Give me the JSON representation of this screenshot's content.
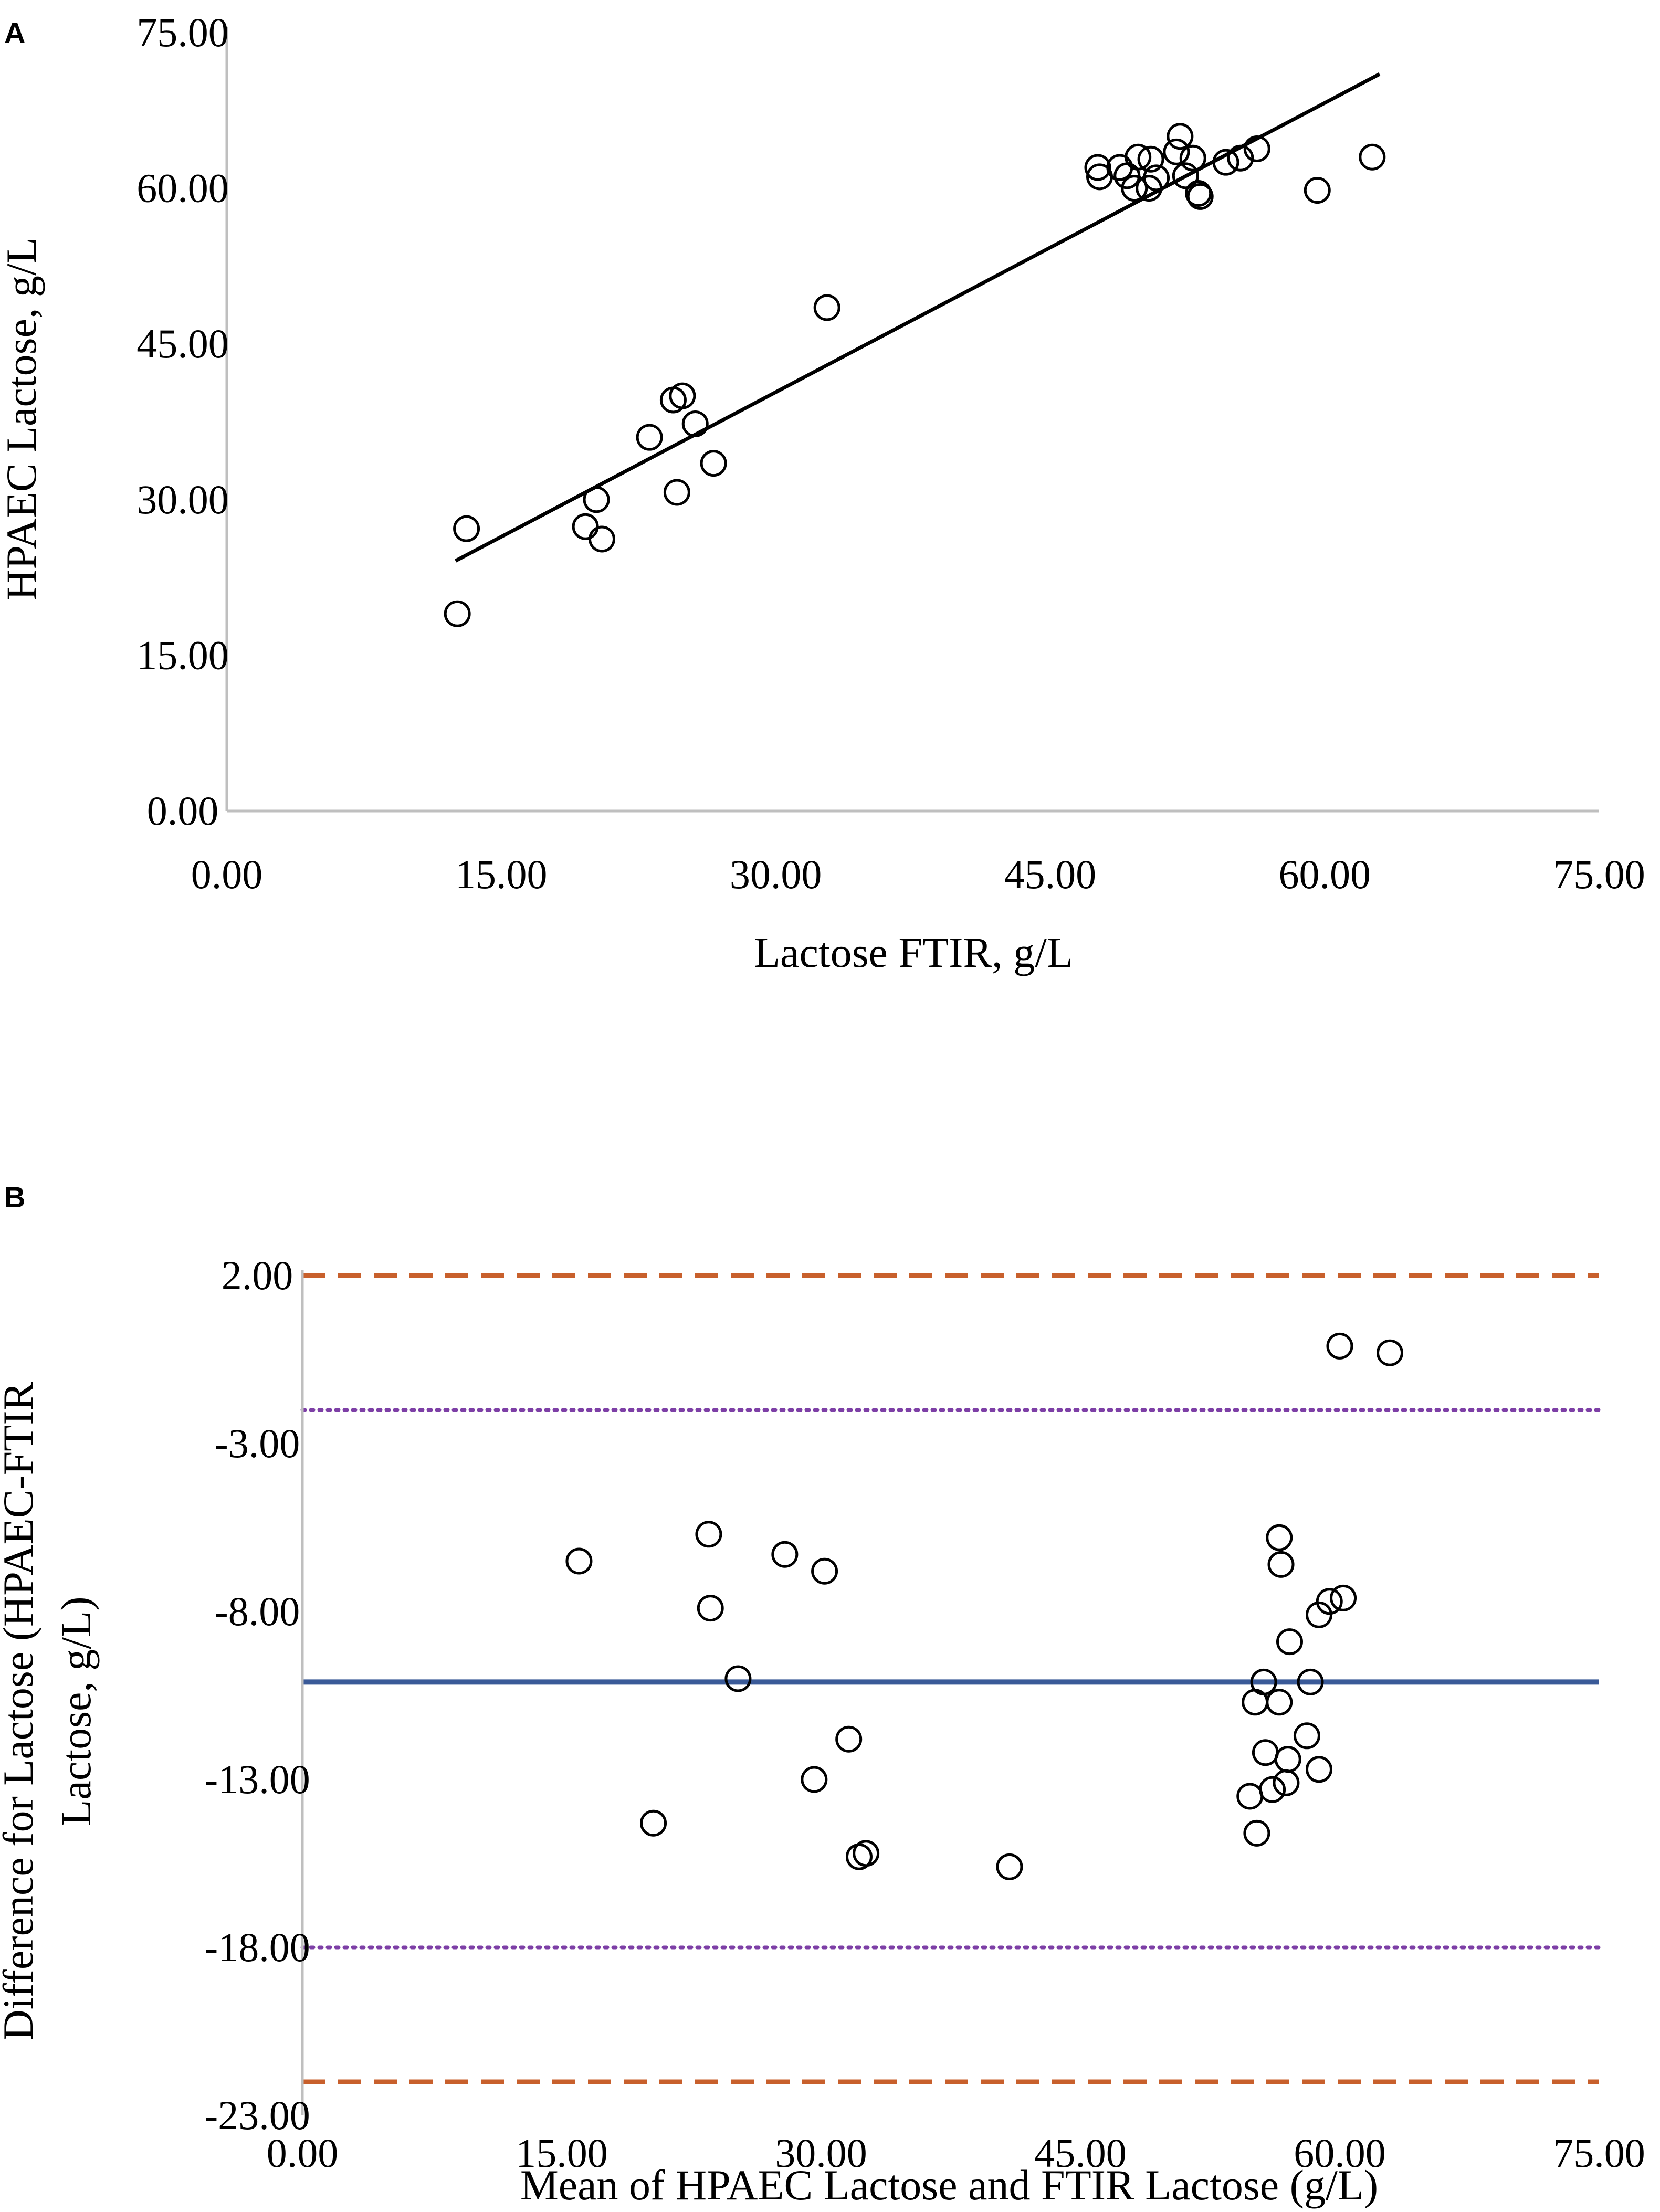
{
  "figure": {
    "panels": [
      "A",
      "B"
    ]
  },
  "chart_data": [
    {
      "panel": "A",
      "type": "scatter",
      "title": "",
      "xlabel": "Lactose FTIR, g/L",
      "ylabel": "HPAEC Lactose, g/L",
      "xlim": [
        0,
        75
      ],
      "ylim": [
        0,
        75
      ],
      "x_ticks": [
        "0.00",
        "15.00",
        "30.00",
        "45.00",
        "60.00",
        "75.00"
      ],
      "y_ticks": [
        "0.00",
        "15.00",
        "30.00",
        "45.00",
        "60.00",
        "75.00"
      ],
      "grid": false,
      "series": [
        {
          "name": "samples",
          "marker": "open-circle",
          "points": [
            [
              12.6,
              19.0
            ],
            [
              13.1,
              27.2
            ],
            [
              19.6,
              27.4
            ],
            [
              20.2,
              30.0
            ],
            [
              20.5,
              26.2
            ],
            [
              23.1,
              36.0
            ],
            [
              24.4,
              39.6
            ],
            [
              24.6,
              30.7
            ],
            [
              24.9,
              40.0
            ],
            [
              25.6,
              37.3
            ],
            [
              26.6,
              33.5
            ],
            [
              32.8,
              48.5
            ],
            [
              47.6,
              62.0
            ],
            [
              47.7,
              61.1
            ],
            [
              48.8,
              62.0
            ],
            [
              49.2,
              61.2
            ],
            [
              49.6,
              60.0
            ],
            [
              49.8,
              63.0
            ],
            [
              50.4,
              60.0
            ],
            [
              50.5,
              62.8
            ],
            [
              50.8,
              61.0
            ],
            [
              51.9,
              63.5
            ],
            [
              52.1,
              65.0
            ],
            [
              52.4,
              61.2
            ],
            [
              52.8,
              62.9
            ],
            [
              53.1,
              59.5
            ],
            [
              53.2,
              59.2
            ],
            [
              54.6,
              62.5
            ],
            [
              55.4,
              62.9
            ],
            [
              56.3,
              63.8
            ],
            [
              59.6,
              59.8
            ],
            [
              62.6,
              63.0
            ]
          ]
        }
      ],
      "trendline": {
        "type": "linear",
        "x": [
          12.5,
          63.0
        ],
        "y": [
          24.1,
          71.0
        ]
      }
    },
    {
      "panel": "B",
      "type": "scatter",
      "title": "",
      "xlabel": "Mean of HPAEC Lactose and FTIR Lactose (g/L)",
      "ylabel_lines": [
        "Difference for Lactose (HPAEC-FTIR",
        "Lactose, g/L)"
      ],
      "xlim": [
        0,
        75
      ],
      "ylim": [
        -23,
        2
      ],
      "x_ticks": [
        "0.00",
        "15.00",
        "30.00",
        "45.00",
        "60.00",
        "75.00"
      ],
      "y_ticks": [
        "2.00",
        "-3.00",
        "-8.00",
        "-13.00",
        "-18.00",
        "-23.00"
      ],
      "grid": false,
      "reference_lines": [
        {
          "name": "mean difference",
          "y": -10.1,
          "style": "solid",
          "color": "#3a5a98"
        },
        {
          "name": "upper limit (dotted)",
          "y": -2.0,
          "style": "dotted",
          "color": "#7d3fa6"
        },
        {
          "name": "lower limit (dotted)",
          "y": -18.0,
          "style": "dotted",
          "color": "#7d3fa6"
        },
        {
          "name": "upper limit (dashed)",
          "y": 2.0,
          "style": "dashed",
          "color": "#c8602c"
        },
        {
          "name": "lower limit (dashed)",
          "y": -22.0,
          "style": "dashed",
          "color": "#c8602c"
        }
      ],
      "series": [
        {
          "name": "differences",
          "marker": "open-circle",
          "points": [
            [
              16.0,
              -6.5
            ],
            [
              20.3,
              -14.3
            ],
            [
              23.5,
              -5.7
            ],
            [
              23.6,
              -7.9
            ],
            [
              25.2,
              -10.0
            ],
            [
              27.9,
              -6.3
            ],
            [
              29.6,
              -13.0
            ],
            [
              30.2,
              -6.8
            ],
            [
              31.6,
              -11.8
            ],
            [
              32.2,
              -15.3
            ],
            [
              32.6,
              -15.2
            ],
            [
              40.9,
              -15.6
            ],
            [
              54.8,
              -13.5
            ],
            [
              55.1,
              -10.7
            ],
            [
              55.2,
              -14.6
            ],
            [
              55.6,
              -10.1
            ],
            [
              55.7,
              -12.2
            ],
            [
              56.1,
              -13.3
            ],
            [
              56.5,
              -10.7
            ],
            [
              56.5,
              -5.8
            ],
            [
              56.6,
              -6.6
            ],
            [
              56.9,
              -13.1
            ],
            [
              57.0,
              -12.4
            ],
            [
              57.1,
              -8.9
            ],
            [
              58.1,
              -11.7
            ],
            [
              58.3,
              -10.1
            ],
            [
              58.8,
              -12.7
            ],
            [
              58.8,
              -8.1
            ],
            [
              59.4,
              -7.7
            ],
            [
              60.2,
              -7.6
            ],
            [
              60.0,
              -0.1
            ],
            [
              62.9,
              -0.3
            ]
          ]
        }
      ]
    }
  ]
}
